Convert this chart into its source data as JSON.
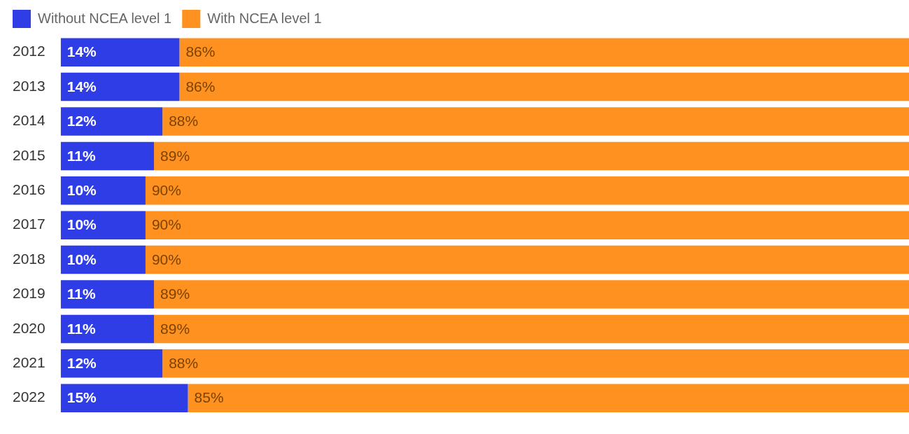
{
  "chart_data": {
    "type": "bar",
    "orientation": "horizontal",
    "stacked": true,
    "categories": [
      "2012",
      "2013",
      "2014",
      "2015",
      "2016",
      "2017",
      "2018",
      "2019",
      "2020",
      "2021",
      "2022"
    ],
    "series": [
      {
        "name": "Without NCEA level 1",
        "color": "#2f3de6",
        "values": [
          14,
          14,
          12,
          11,
          10,
          10,
          10,
          11,
          11,
          12,
          15
        ],
        "value_labels": [
          "14%",
          "14%",
          "12%",
          "11%",
          "10%",
          "10%",
          "10%",
          "11%",
          "11%",
          "12%",
          "15%"
        ]
      },
      {
        "name": "With NCEA level 1",
        "color": "#ff9120",
        "values": [
          86,
          86,
          88,
          89,
          90,
          90,
          90,
          89,
          89,
          88,
          85
        ],
        "value_labels": [
          "86%",
          "86%",
          "88%",
          "89%",
          "90%",
          "90%",
          "90%",
          "89%",
          "89%",
          "88%",
          "85%"
        ]
      }
    ],
    "tick_labels": "y",
    "legend": "top left"
  }
}
